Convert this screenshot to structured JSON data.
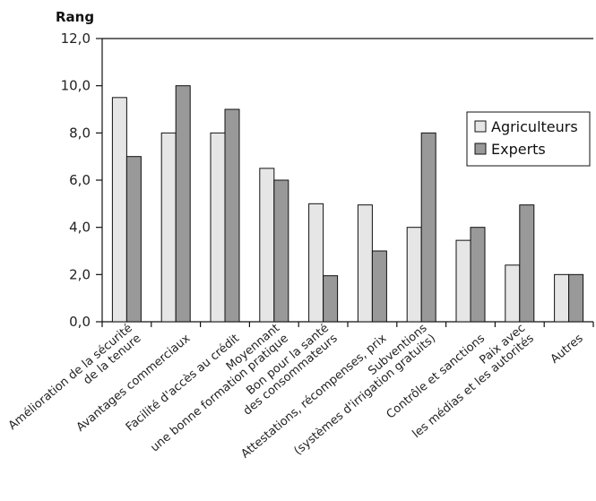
{
  "chart_data": {
    "type": "bar",
    "ylabel": "Rang",
    "ylim": [
      0,
      12
    ],
    "yticks": [
      "0,0",
      "2,0",
      "4,0",
      "6,0",
      "8,0",
      "10,0",
      "12,0"
    ],
    "categories": [
      [
        "Amélioration de la sécurité",
        "de la tenure"
      ],
      [
        "Avantages commerciaux"
      ],
      [
        "Facilité d'accès au crédit"
      ],
      [
        "Moyennant",
        "une bonne formation pratique"
      ],
      [
        "Bon pour la santé",
        "des consommateurs"
      ],
      [
        "Attestations, récompenses, prix"
      ],
      [
        "Subventions",
        "(systèmes d'irrigation gratuits)"
      ],
      [
        "Contrôle et sanctions"
      ],
      [
        "Paix avec",
        "les médias et les autorités"
      ],
      [
        "Autres"
      ]
    ],
    "series": [
      {
        "name": "Agriculteurs",
        "color": "#e6e6e6",
        "values": [
          9.5,
          8.0,
          8.0,
          6.5,
          5.0,
          4.95,
          4.0,
          3.45,
          2.4,
          2.0
        ]
      },
      {
        "name": "Experts",
        "color": "#999999",
        "values": [
          7.0,
          10.0,
          9.0,
          6.0,
          1.95,
          3.0,
          8.0,
          4.0,
          4.95,
          2.0
        ]
      }
    ],
    "legend_position": "right",
    "grid": false
  }
}
